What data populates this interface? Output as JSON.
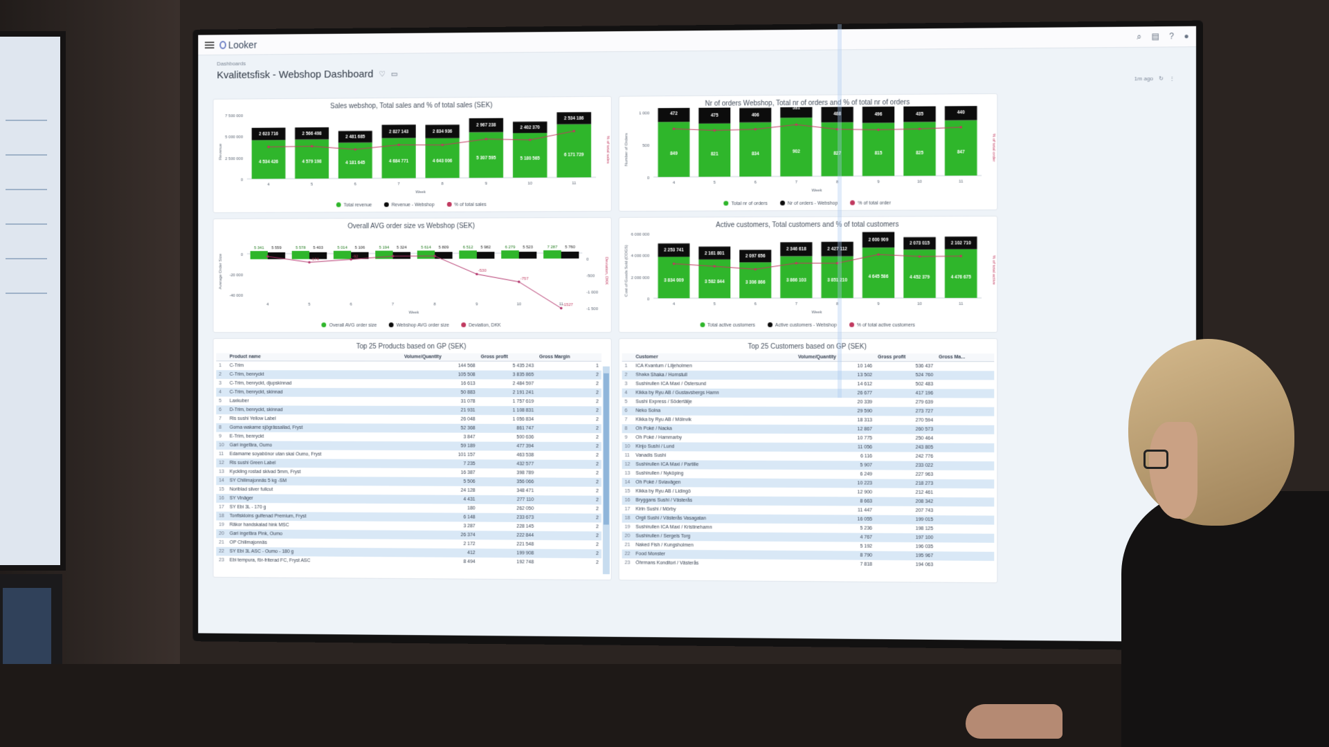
{
  "app": {
    "name": "Looker"
  },
  "breadcrumb": "Dashboards",
  "dashboard_title": "Kvalitetsfisk - Webshop Dashboard",
  "meta": {
    "updated": "1m ago"
  },
  "tiles": {
    "sales": {
      "title": "Sales webshop, Total sales and % of total sales (SEK)",
      "ylabel": "Revenue",
      "y2label": "% of total sales",
      "xlabel": "Week",
      "yticks": [
        "7 500 000",
        "5 000 000",
        "2 500 000",
        "0"
      ],
      "legend": [
        "Total revenue",
        "Revenue - Webshop",
        "% of total sales"
      ]
    },
    "orders": {
      "title": "Nr of orders Webshop, Total nr of orders and % of total nr of orders",
      "ylabel": "Number of Orders",
      "y2label": "% of total order",
      "xlabel": "Week",
      "yticks": [
        "1 000",
        "500",
        "0"
      ],
      "legend": [
        "Total nr of orders",
        "Nr of orders - Webshop",
        "% of total order"
      ]
    },
    "avg": {
      "title": "Overall AVG order size vs Webshop (SEK)",
      "ylabel": "Average Order Size",
      "y2label": "Deviation, DKK",
      "xlabel": "Week",
      "yticks": [
        "0",
        "-20 000",
        "-40 000"
      ],
      "y2ticks": [
        "0",
        "-500",
        "-1 000",
        "-1 500"
      ],
      "legend": [
        "Overall AVG order size",
        "Webshop AVG order size",
        "Deviation, DKK"
      ]
    },
    "customers": {
      "title": "Active customers, Total customers and % of total customers",
      "ylabel": "Cost of Goods Sold (COGS)",
      "y2label": "% of total active",
      "xlabel": "Week",
      "yticks": [
        "6 000 000",
        "4 000 000",
        "2 000 000",
        "0"
      ],
      "legend": [
        "Total active customers",
        "Active customers - Webshop",
        "% of total active customers"
      ]
    }
  },
  "chart_data": [
    {
      "type": "bar",
      "title": "Sales webshop, Total sales and % of total sales (SEK)",
      "xlabel": "Week",
      "ylabel": "Revenue",
      "categories": [
        "4",
        "5",
        "6",
        "7",
        "8",
        "9",
        "10",
        "11"
      ],
      "ylim": [
        0,
        7500000
      ],
      "series": [
        {
          "name": "Total revenue",
          "values": [
            4534426,
            4579198,
            4181645,
            4684771,
            4643006,
            5307595,
            5180565,
            6171729
          ],
          "color": "#2fb62b"
        },
        {
          "name": "Revenue - Webshop",
          "values": [
            2623716,
            2566498,
            2481685,
            2827143,
            2834936,
            2967238,
            2402370,
            2534186
          ],
          "color": "#0c0c0c"
        }
      ]
    },
    {
      "type": "bar",
      "title": "Nr of orders Webshop, Total nr of orders and % of total nr of orders",
      "xlabel": "Week",
      "ylabel": "Number of Orders",
      "categories": [
        "4",
        "5",
        "6",
        "7",
        "8",
        "9",
        "10",
        "11"
      ],
      "ylim": [
        0,
        1000
      ],
      "series": [
        {
          "name": "Total nr of orders",
          "values": [
            849,
            821,
            834,
            902,
            827,
            815,
            825,
            847
          ],
          "color": "#2fb62b"
        },
        {
          "name": "Nr of orders - Webshop",
          "values": [
            472,
            475,
            406,
            531,
            488,
            496,
            435,
            440
          ],
          "color": "#0c0c0c"
        }
      ]
    },
    {
      "type": "bar",
      "title": "Overall AVG order size vs Webshop (SEK)",
      "xlabel": "Week",
      "ylabel": "Average Order Size",
      "categories": [
        "4",
        "5",
        "6",
        "7",
        "8",
        "9",
        "10",
        "11"
      ],
      "series": [
        {
          "name": "Overall AVG order size",
          "values": [
            5341,
            5578,
            5014,
            5194,
            5614,
            6512,
            6279,
            7287
          ],
          "color": "#2fb62b"
        },
        {
          "name": "Webshop AVG order size",
          "values": [
            5559,
            5403,
            5106,
            5324,
            5809,
            5982,
            5523,
            5760
          ],
          "color": "#0c0c0c"
        },
        {
          "name": "Deviation, DKK",
          "values": [
            0,
            -174,
            -92,
            0,
            0,
            -530,
            -757,
            -1527
          ],
          "color": "#b3336b"
        }
      ]
    },
    {
      "type": "bar",
      "title": "Active customers, Total customers and % of total customers",
      "xlabel": "Week",
      "ylabel": "Cost of Goods Sold (COGS)",
      "categories": [
        "4",
        "5",
        "6",
        "7",
        "8",
        "9",
        "10",
        "11"
      ],
      "ylim": [
        0,
        6000000
      ],
      "series": [
        {
          "name": "Total active customers",
          "values": [
            3834009,
            3582844,
            3306866,
            3866103,
            3851210,
            4645586,
            4452379,
            4476675
          ],
          "color": "#2fb62b"
        },
        {
          "name": "Active customers - Webshop",
          "values": [
            2253741,
            2161801,
            2097656,
            2346618,
            2427112,
            2600909,
            2073015,
            2102710
          ],
          "color": "#0c0c0c"
        }
      ]
    }
  ],
  "products": {
    "title": "Top 25 Products based on GP (SEK)",
    "columns": [
      "Product name",
      "Volume/Quantity",
      "Gross profit",
      "Gross Margin"
    ],
    "rows": [
      [
        "1",
        "C-Trim",
        "144 568",
        "5 435 243",
        "1"
      ],
      [
        "2",
        "C-Trim, benryckt",
        "105 508",
        "3 835 865",
        "2"
      ],
      [
        "3",
        "C-Trim, benryckt, djupskinnad",
        "16 613",
        "2 484 597",
        "2"
      ],
      [
        "4",
        "C-Trim, benryckt, skinnad",
        "50 883",
        "2 191 241",
        "2"
      ],
      [
        "5",
        "Laxkuber",
        "31 078",
        "1 757 619",
        "2"
      ],
      [
        "6",
        "D-Trim, benryckt, skinnad",
        "21 931",
        "1 108 831",
        "2"
      ],
      [
        "7",
        "Ris sushi Yellow Label",
        "26 048",
        "1 056 834",
        "2"
      ],
      [
        "8",
        "Goma wakame sjögrässallad, Fryst",
        "52 368",
        "861 747",
        "2"
      ],
      [
        "9",
        "E-Trim, benryckt",
        "3 847",
        "500 636",
        "2"
      ],
      [
        "10",
        "Gari ingefära, Oumo",
        "59 189",
        "477 394",
        "2"
      ],
      [
        "11",
        "Edamame soyabönor utan skal Oumo, Fryst",
        "101 157",
        "463 538",
        "2"
      ],
      [
        "12",
        "Ris sushi Green Label",
        "7 235",
        "432 577",
        "2"
      ],
      [
        "13",
        "Kyckling rostad skivad 5mm, Fryst",
        "16 387",
        "398 789",
        "2"
      ],
      [
        "14",
        "SY Chilimajonnäs 5 kg -SM",
        "5 506",
        "356 066",
        "2"
      ],
      [
        "15",
        "Noriblad silver fullcut",
        "24 128",
        "348 471",
        "2"
      ],
      [
        "16",
        "SY Vinäger",
        "4 431",
        "277 110",
        "2"
      ],
      [
        "17",
        "SY Ebi 3L - 170 g",
        "180",
        "262 050",
        "2"
      ],
      [
        "18",
        "Tonfiskloins gulfenad Premium, Fryst",
        "6 148",
        "233 673",
        "2"
      ],
      [
        "19",
        "Räkor handskalad hink MSC",
        "3 287",
        "228 145",
        "2"
      ],
      [
        "20",
        "Gari ingefära Pink, Oumo",
        "26 374",
        "222 844",
        "2"
      ],
      [
        "21",
        "OP Chilimajonnäs",
        "2 172",
        "221 548",
        "2"
      ],
      [
        "22",
        "SY Ebi 3L ASC - Oumo - 180 g",
        "412",
        "199 908",
        "2"
      ],
      [
        "23",
        "Ebi tempura, för-friterad FC, Fryst ASC",
        "8 494",
        "192 748",
        "2"
      ]
    ]
  },
  "customers_table": {
    "title": "Top 25 Customers based on GP (SEK)",
    "columns": [
      "Customer",
      "Volume/Quantity",
      "Gross profit",
      "Gross Ma..."
    ],
    "rows": [
      [
        "1",
        "ICA Kvantum / Liljeholmen",
        "10 146",
        "536 437"
      ],
      [
        "2",
        "Shaka Shaka / Hornstull",
        "13 502",
        "524 760"
      ],
      [
        "3",
        "Sushirullen ICA Maxi / Östersund",
        "14 612",
        "502 483"
      ],
      [
        "4",
        "Kikka by Ryu AB / Gustavsbergs Hamn",
        "26 677",
        "417 196"
      ],
      [
        "5",
        "Sushi Express / Södertälje",
        "20 339",
        "279 639"
      ],
      [
        "6",
        "Neko Solna",
        "29 590",
        "273 727"
      ],
      [
        "7",
        "Kikka by Ryu AB / Mölnvik",
        "18 313",
        "270 594"
      ],
      [
        "8",
        "Oh Poké / Nacka",
        "12 867",
        "260 573"
      ],
      [
        "9",
        "Oh Poké / Hammarby",
        "10 775",
        "250 464"
      ],
      [
        "10",
        "Kinjo Sushi / Lund",
        "11 056",
        "243 805"
      ],
      [
        "11",
        "Vanadis Sushi",
        "6 116",
        "242 776"
      ],
      [
        "12",
        "Sushirullen ICA Maxi / Partille",
        "5 907",
        "233 022"
      ],
      [
        "13",
        "Sushirullen / Nyköping",
        "6 249",
        "227 963"
      ],
      [
        "14",
        "Oh Poké / Sviavägen",
        "10 223",
        "218 273"
      ],
      [
        "15",
        "Kikka by Ryu AB / Lidingö",
        "12 900",
        "212 461"
      ],
      [
        "16",
        "Bryggans Sushi / Västerås",
        "8 663",
        "208 342"
      ],
      [
        "17",
        "Kirin Sushi / Mörby",
        "11 447",
        "207 743"
      ],
      [
        "18",
        "Orgil Sushi / Västerås Vasagatan",
        "16 055",
        "199 015"
      ],
      [
        "19",
        "Sushirullen ICA Maxi / Kristinehamn",
        "5 236",
        "198 125"
      ],
      [
        "20",
        "Sushirullen / Sergels Torg",
        "4 767",
        "197 100"
      ],
      [
        "21",
        "Naked Fish / Kungsholmen",
        "5 192",
        "196 035"
      ],
      [
        "22",
        "Food Monster",
        "8 790",
        "195 967"
      ],
      [
        "23",
        "Öhrmans Konditori / Västerås",
        "7 818",
        "194 063"
      ]
    ]
  },
  "colors": {
    "green": "#2fb62b",
    "black": "#0c0c0c",
    "line": "#c0395f",
    "accent": "#6b7ec4"
  }
}
